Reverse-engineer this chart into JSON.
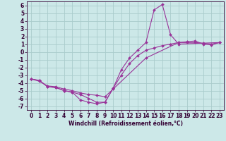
{
  "xlabel": "Windchill (Refroidissement éolien,°C)",
  "background_color": "#cce8e8",
  "grid_color": "#aacccc",
  "line_color": "#993399",
  "xlim": [
    -0.5,
    23.5
  ],
  "ylim": [
    -7.5,
    6.5
  ],
  "xticks": [
    0,
    1,
    2,
    3,
    4,
    5,
    6,
    7,
    8,
    9,
    10,
    11,
    12,
    13,
    14,
    15,
    16,
    17,
    18,
    19,
    20,
    21,
    22,
    23
  ],
  "yticks": [
    -7,
    -6,
    -5,
    -4,
    -3,
    -2,
    -1,
    0,
    1,
    2,
    3,
    4,
    5,
    6
  ],
  "line1_x": [
    0,
    1,
    2,
    3,
    4,
    5,
    6,
    7,
    8,
    9,
    10,
    11,
    12,
    13,
    14,
    15,
    16,
    17,
    18,
    23
  ],
  "line1_y": [
    -3.5,
    -3.7,
    -4.5,
    -4.6,
    -5.0,
    -5.2,
    -6.2,
    -6.5,
    -6.7,
    -6.5,
    -4.7,
    -2.3,
    -0.8,
    0.2,
    1.2,
    5.4,
    6.1,
    2.2,
    1.0,
    1.2
  ],
  "line2_x": [
    0,
    1,
    2,
    3,
    4,
    5,
    6,
    7,
    8,
    9,
    10,
    11,
    12,
    13,
    14,
    15,
    16,
    17,
    18,
    19,
    20,
    21,
    22,
    23
  ],
  "line2_y": [
    -3.5,
    -3.7,
    -4.5,
    -4.6,
    -5.0,
    -5.2,
    -5.5,
    -6.0,
    -6.5,
    -6.5,
    -4.7,
    -3.0,
    -1.5,
    -0.5,
    0.2,
    0.5,
    0.8,
    1.0,
    1.2,
    1.3,
    1.4,
    1.0,
    0.9,
    1.2
  ],
  "line3_x": [
    0,
    1,
    2,
    3,
    4,
    5,
    6,
    7,
    8,
    9,
    10,
    14,
    18,
    19,
    20,
    21,
    22,
    23
  ],
  "line3_y": [
    -3.5,
    -3.8,
    -4.4,
    -4.5,
    -4.8,
    -5.0,
    -5.3,
    -5.5,
    -5.6,
    -5.8,
    -4.8,
    -0.8,
    1.2,
    1.2,
    1.2,
    1.1,
    1.0,
    1.2
  ],
  "tick_labelsize": 5.5,
  "xlabel_fontsize": 5.5,
  "marker_size": 2.0,
  "line_width": 0.8
}
